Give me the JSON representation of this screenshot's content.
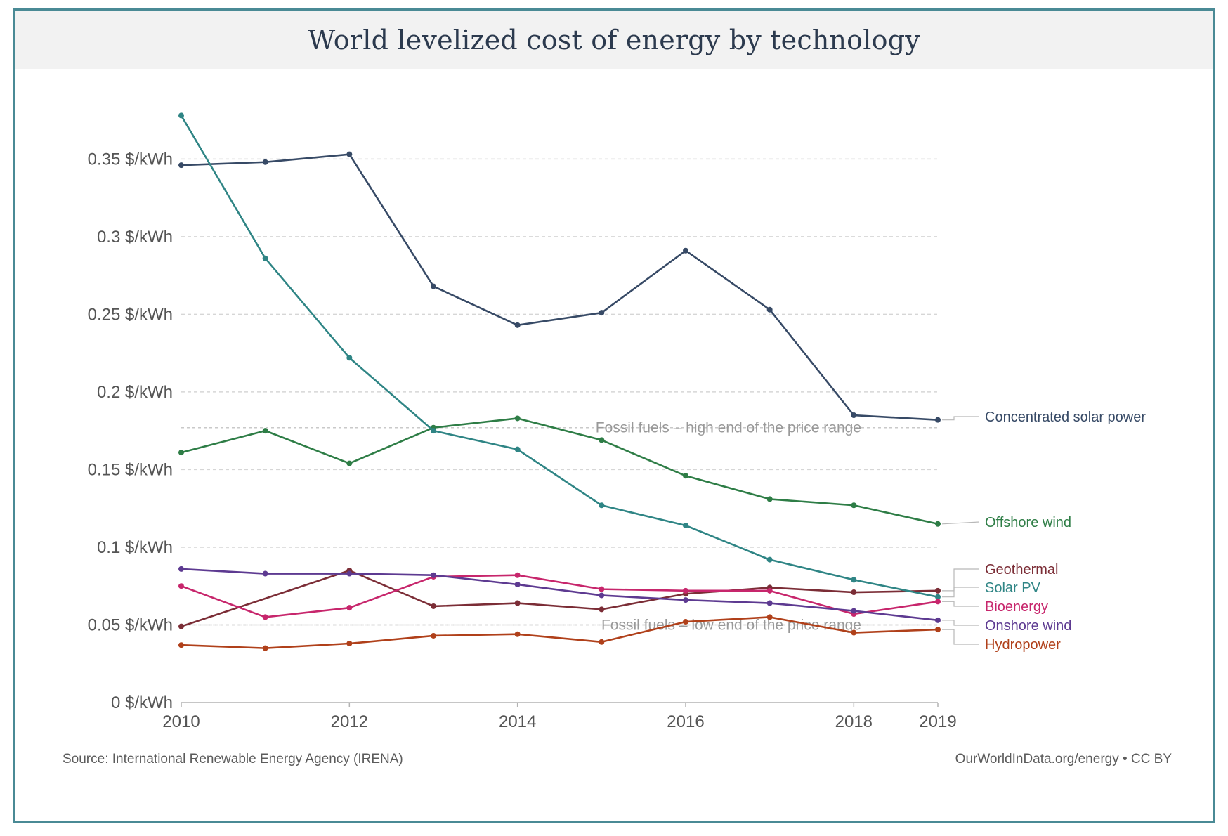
{
  "title": "World levelized cost of energy by technology",
  "source": "Source: International Renewable Energy Agency (IRENA)",
  "credit": "OurWorldInData.org/energy • CC BY",
  "chart_data": {
    "type": "line",
    "x": [
      2010,
      2011,
      2012,
      2013,
      2014,
      2015,
      2016,
      2017,
      2018,
      2019
    ],
    "x_tick_labels": [
      "2010",
      "2012",
      "2014",
      "2016",
      "2018",
      "2019"
    ],
    "x_ticks": [
      2010,
      2012,
      2014,
      2016,
      2018,
      2019
    ],
    "y_ticks": [
      0,
      0.05,
      0.1,
      0.15,
      0.2,
      0.25,
      0.3,
      0.35
    ],
    "y_tick_labels": [
      "0 $/kWh",
      "0.05 $/kWh",
      "0.1 $/kWh",
      "0.15 $/kWh",
      "0.2 $/kWh",
      "0.25 $/kWh",
      "0.3 $/kWh",
      "0.35 $/kWh"
    ],
    "ylim": [
      0,
      0.38
    ],
    "grid": true,
    "reference_lines": [
      {
        "label": "Fossil fuels – high end of the price range",
        "value": 0.177
      },
      {
        "label": "Fossil fuels – low end of the price range",
        "value": 0.05
      }
    ],
    "series": [
      {
        "name": "Concentrated solar power",
        "color": "#374a66",
        "values": [
          0.346,
          0.348,
          0.353,
          0.268,
          0.243,
          0.251,
          0.291,
          0.253,
          0.185,
          0.182
        ]
      },
      {
        "name": "Offshore wind",
        "color": "#2e7d46",
        "values": [
          0.161,
          0.175,
          0.154,
          0.177,
          0.183,
          0.169,
          0.146,
          0.131,
          0.127,
          0.115
        ]
      },
      {
        "name": "Geothermal",
        "color": "#7b2d36",
        "values": [
          0.049,
          null,
          0.085,
          0.062,
          0.064,
          0.06,
          0.07,
          0.074,
          0.071,
          0.072
        ]
      },
      {
        "name": "Solar PV",
        "color": "#2f8585",
        "values": [
          0.378,
          0.286,
          0.222,
          0.175,
          0.163,
          0.127,
          0.114,
          0.092,
          0.079,
          0.068
        ]
      },
      {
        "name": "Bioenergy",
        "color": "#c7266c",
        "values": [
          0.075,
          0.055,
          0.061,
          0.081,
          0.082,
          0.073,
          0.072,
          0.072,
          0.057,
          0.065
        ]
      },
      {
        "name": "Onshore wind",
        "color": "#5d3a91",
        "values": [
          0.086,
          0.083,
          0.083,
          0.082,
          0.076,
          0.069,
          0.066,
          0.064,
          0.059,
          0.053
        ]
      },
      {
        "name": "Hydropower",
        "color": "#b0401a",
        "values": [
          0.037,
          0.035,
          0.038,
          0.043,
          0.044,
          0.039,
          0.052,
          0.055,
          0.045,
          0.047
        ]
      }
    ]
  }
}
